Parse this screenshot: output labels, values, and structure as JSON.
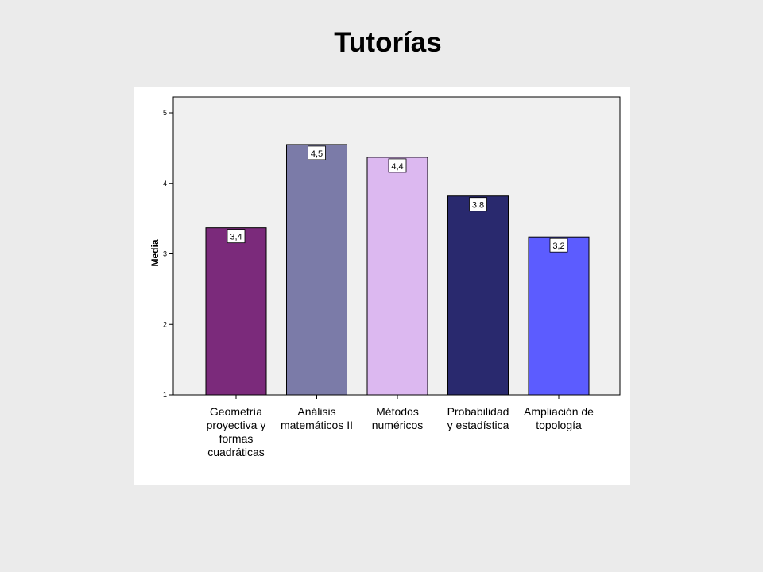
{
  "slide": {
    "title": "Tutorías"
  },
  "chart_data": {
    "type": "bar",
    "title": "",
    "xlabel": "",
    "ylabel": "Media",
    "ylim": [
      1,
      5
    ],
    "yticks": [
      1,
      2,
      3,
      4,
      5
    ],
    "grid": false,
    "categories": [
      [
        "Geometría",
        "proyectiva y",
        "formas",
        "cuadráticas"
      ],
      [
        "Análisis",
        "matemáticos II"
      ],
      [
        "Métodos",
        "numéricos"
      ],
      [
        "Probabilidad",
        "y estadística"
      ],
      [
        "Ampliación de",
        "topología"
      ]
    ],
    "values": [
      3.37,
      4.55,
      4.37,
      3.82,
      3.24
    ],
    "data_labels": [
      "3,4",
      "4,5",
      "4,4",
      "3,8",
      "3,2"
    ],
    "colors": [
      "#7b2a7b",
      "#7b7ba8",
      "#dcb8f0",
      "#29296e",
      "#5c5cff"
    ],
    "plot_background": "#f0f0f0"
  }
}
